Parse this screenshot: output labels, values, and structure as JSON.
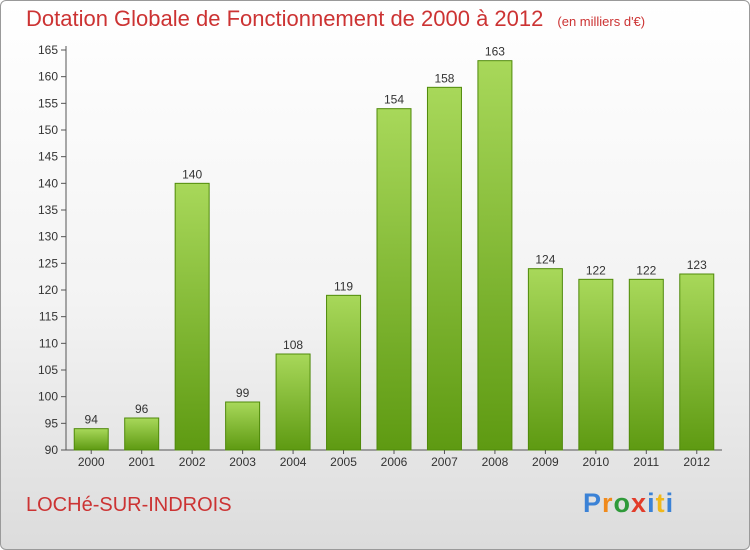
{
  "title": "Dotation Globale de Fonctionnement de 2000 à 2012",
  "unit_note": "(en milliers d'€)",
  "commune": "LOCHé-SUR-INDROIS",
  "logo": {
    "text": "Proxiti",
    "colors": [
      "#3b82d6",
      "#f08a1c",
      "#2f9a3a",
      "#e23c2a",
      "#3b82d6",
      "#f0b81c",
      "#3b82d6"
    ]
  },
  "colors": {
    "title": "#cc3333",
    "bar_top": "#a8d85a",
    "bar_bottom": "#5e9a12",
    "bar_edge": "#4f8a0a"
  },
  "chart_data": {
    "type": "bar",
    "categories": [
      "2000",
      "2001",
      "2002",
      "2003",
      "2004",
      "2005",
      "2006",
      "2007",
      "2008",
      "2009",
      "2010",
      "2011",
      "2012"
    ],
    "values": [
      94,
      96,
      140,
      99,
      108,
      119,
      154,
      158,
      163,
      124,
      122,
      122,
      123
    ],
    "ylim": [
      90,
      165
    ],
    "yticks": [
      90,
      95,
      100,
      105,
      110,
      115,
      120,
      125,
      130,
      135,
      140,
      145,
      150,
      155,
      160,
      165
    ],
    "grid": false,
    "data_labels": true
  }
}
